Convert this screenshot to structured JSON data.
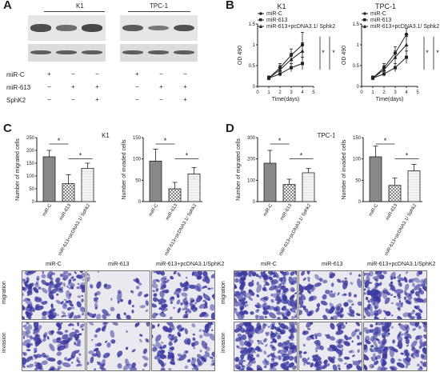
{
  "panels": {
    "A": "A",
    "B": "B",
    "C": "C",
    "D": "D"
  },
  "blot": {
    "groups": [
      "K1",
      "TPC-1"
    ],
    "rows": [
      {
        "label": "miR-C",
        "marks": [
          "+",
          "−",
          "−",
          "+",
          "−",
          "−"
        ]
      },
      {
        "label": "miR-613",
        "marks": [
          "−",
          "+",
          "+",
          "−",
          "+",
          "+"
        ]
      },
      {
        "label": "SphK2",
        "marks": [
          "−",
          "−",
          "+",
          "−",
          "−",
          "+"
        ]
      }
    ],
    "band_intensity": [
      [
        0.85,
        0.55,
        0.9
      ],
      [
        0.7,
        0.45,
        0.8
      ]
    ]
  },
  "colors": {
    "bar_dark": "#888888",
    "bar_light": "#d5d5d5",
    "axis": "#222222",
    "line": "#222222",
    "cell_stain": "#3b3aa0",
    "micro_bg": "#e9e9ef"
  },
  "chart_data": [
    {
      "type": "line",
      "title": "K1",
      "xlabel": "Time(days)",
      "ylabel": "OD 490",
      "x": [
        1,
        2,
        3,
        4
      ],
      "xticks": [
        0,
        1,
        2,
        3,
        4,
        5
      ],
      "yticks": [
        0,
        0.5,
        1,
        1.5
      ],
      "ylim": [
        0,
        1.5
      ],
      "xlim": [
        0,
        5
      ],
      "series": [
        {
          "name": "miR-C",
          "values": [
            0.2,
            0.45,
            0.75,
            1.0
          ],
          "err": [
            0.05,
            0.1,
            0.15,
            0.3
          ],
          "marker": "circle"
        },
        {
          "name": "miR-613",
          "values": [
            0.2,
            0.3,
            0.45,
            0.55
          ],
          "err": [
            0.04,
            0.06,
            0.1,
            0.15
          ],
          "marker": "square"
        },
        {
          "name": "miR-613+pcDNA3.1/ Sphk2",
          "values": [
            0.2,
            0.4,
            0.65,
            0.85
          ],
          "err": [
            0.05,
            0.1,
            0.15,
            0.2
          ],
          "marker": "triangle"
        }
      ],
      "annotations": [
        "*",
        "*"
      ]
    },
    {
      "type": "line",
      "title": "TPC-1",
      "xlabel": "Time(days)",
      "ylabel": "OD 490",
      "x": [
        1,
        2,
        3,
        4
      ],
      "xticks": [
        0,
        1,
        2,
        3,
        4,
        5
      ],
      "yticks": [
        0,
        0.5,
        1,
        1.5
      ],
      "ylim": [
        0,
        1.5
      ],
      "xlim": [
        0,
        5
      ],
      "series": [
        {
          "name": "miR-C",
          "values": [
            0.2,
            0.45,
            0.8,
            1.25
          ],
          "err": [
            0.05,
            0.1,
            0.15,
            0.15
          ],
          "marker": "circle"
        },
        {
          "name": "miR-613",
          "values": [
            0.2,
            0.3,
            0.45,
            0.7
          ],
          "err": [
            0.04,
            0.06,
            0.1,
            0.15
          ],
          "marker": "square"
        },
        {
          "name": "miR-613+pcDNA3.1/ Sphk2",
          "values": [
            0.2,
            0.4,
            0.7,
            1.0
          ],
          "err": [
            0.05,
            0.1,
            0.15,
            0.2
          ],
          "marker": "triangle"
        }
      ],
      "annotations": [
        "*",
        "*"
      ]
    },
    {
      "type": "bar",
      "title": "K1",
      "ylabel": "Number of migrated cells",
      "categories": [
        "miR-C",
        "miR-613",
        "miR-613+pcDNA3.1/ Sphk2"
      ],
      "values": [
        175,
        70,
        130
      ],
      "err": [
        25,
        35,
        20
      ],
      "ylim": [
        0,
        250
      ],
      "yticks": [
        0,
        50,
        100,
        150,
        200,
        250
      ],
      "annotations": [
        "*",
        "*"
      ]
    },
    {
      "type": "bar",
      "ylabel": "Number of invaded cells",
      "categories": [
        "miR-C",
        "miR-613",
        "miR-613+pcDNA3.1/ Sphk2"
      ],
      "values": [
        95,
        30,
        65
      ],
      "err": [
        28,
        15,
        15
      ],
      "ylim": [
        0,
        150
      ],
      "yticks": [
        0,
        50,
        100,
        150
      ],
      "annotations": [
        "*",
        "*"
      ]
    },
    {
      "type": "bar",
      "title": "TPC-1",
      "ylabel": "Number of migrated cells",
      "categories": [
        "miR-C",
        "miR-613",
        "miR-613+pcDNA3.1/ Sphk2"
      ],
      "values": [
        180,
        80,
        135
      ],
      "err": [
        60,
        25,
        20
      ],
      "ylim": [
        0,
        300
      ],
      "yticks": [
        0,
        100,
        200,
        300
      ],
      "annotations": [
        "*",
        "*"
      ]
    },
    {
      "type": "bar",
      "ylabel": "Number of invaded cells",
      "categories": [
        "miR-C",
        "miR-613",
        "miR-613+pcDNA3.1/ Sphk2"
      ],
      "values": [
        105,
        38,
        72
      ],
      "err": [
        25,
        17,
        15
      ],
      "ylim": [
        0,
        150
      ],
      "yticks": [
        0,
        50,
        100,
        150
      ],
      "annotations": [
        "*",
        "*"
      ]
    }
  ],
  "micrographs": {
    "k1_cols": [
      "miR-C",
      "miR-613",
      "miR-613+pcDNA3.1/SphK2"
    ],
    "tpc1_cols": [
      "miR-C",
      "miR-613",
      "miR-613+pcDNA3.1/SphK2"
    ],
    "rows": [
      "migration",
      "invasion"
    ],
    "density_k1": [
      [
        0.8,
        0.15,
        0.6
      ],
      [
        0.6,
        0.2,
        0.5
      ]
    ],
    "density_tpc1": [
      [
        1.0,
        0.4,
        0.75
      ],
      [
        1.0,
        0.45,
        0.8
      ]
    ]
  }
}
